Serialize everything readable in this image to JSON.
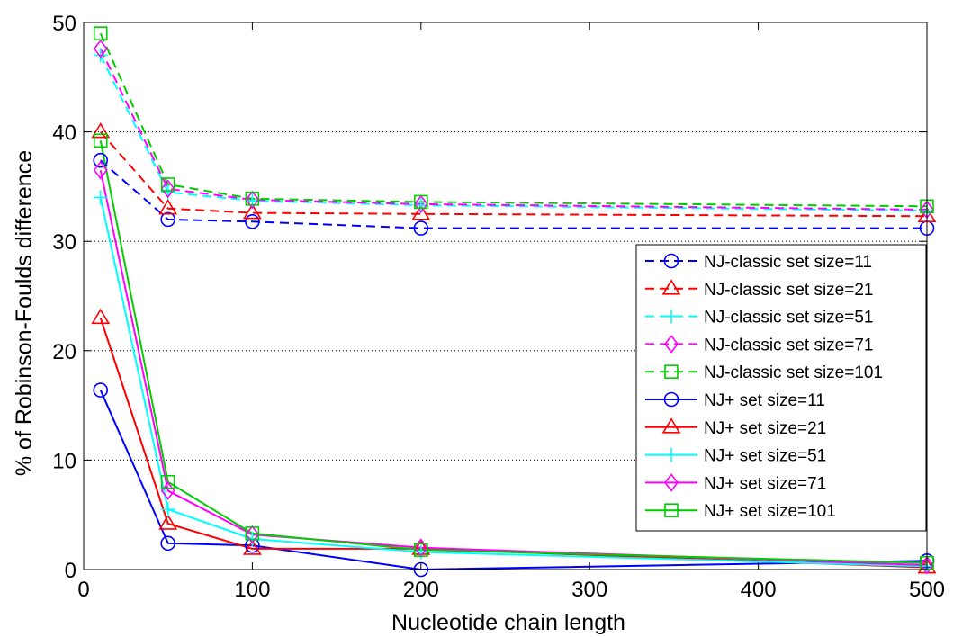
{
  "chart_data": {
    "type": "line",
    "xlabel": "Nucleotide chain length",
    "ylabel": "% of Robinson-Foulds difference",
    "x": [
      10,
      50,
      100,
      200,
      500
    ],
    "x_ticks": [
      "0",
      "100",
      "200",
      "300",
      "400",
      "500"
    ],
    "y_ticks": [
      "0",
      "10",
      "20",
      "30",
      "40",
      "50"
    ],
    "ylim": [
      0,
      50
    ],
    "grid": "horizontal-dotted",
    "legend_position": "right",
    "series": [
      {
        "name": "NJ-classic set size=11",
        "color": "#0000ff",
        "style": "dashed",
        "marker": "circle",
        "values": [
          37.4,
          32.0,
          31.8,
          31.2,
          31.2
        ]
      },
      {
        "name": "NJ-classic set size=21",
        "color": "#ff0000",
        "style": "dashed",
        "marker": "triangle",
        "values": [
          40.0,
          33.0,
          32.6,
          32.5,
          32.3
        ]
      },
      {
        "name": "NJ-classic set size=51",
        "color": "#00ffff",
        "style": "dashed",
        "marker": "plus",
        "values": [
          47.0,
          34.5,
          33.7,
          33.3,
          32.8
        ]
      },
      {
        "name": "NJ-classic set size=71",
        "color": "#ff00ff",
        "style": "dashed",
        "marker": "diamond",
        "values": [
          47.6,
          34.8,
          33.8,
          33.4,
          32.9
        ]
      },
      {
        "name": "NJ-classic set size=101",
        "color": "#00cc00",
        "style": "dashed",
        "marker": "square",
        "values": [
          49.0,
          35.2,
          33.9,
          33.6,
          33.2
        ]
      },
      {
        "name": "NJ+ set size=11",
        "color": "#0000ff",
        "style": "solid",
        "marker": "circle",
        "values": [
          16.4,
          2.4,
          2.2,
          0.0,
          0.8
        ]
      },
      {
        "name": "NJ+ set size=21",
        "color": "#ff0000",
        "style": "solid",
        "marker": "triangle",
        "values": [
          23.0,
          4.2,
          1.9,
          1.9,
          0.2
        ]
      },
      {
        "name": "NJ+ set size=51",
        "color": "#00ffff",
        "style": "solid",
        "marker": "plus",
        "values": [
          34.0,
          5.5,
          2.8,
          1.6,
          0.3
        ]
      },
      {
        "name": "NJ+ set size=71",
        "color": "#ff00ff",
        "style": "solid",
        "marker": "diamond",
        "values": [
          36.5,
          7.2,
          3.2,
          2.0,
          0.4
        ]
      },
      {
        "name": "NJ+ set size=101",
        "color": "#00cc00",
        "style": "solid",
        "marker": "square",
        "values": [
          39.2,
          8.0,
          3.3,
          1.8,
          0.6
        ]
      }
    ]
  }
}
